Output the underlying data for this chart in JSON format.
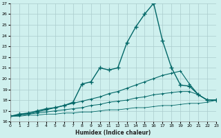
{
  "xlabel": "Humidex (Indice chaleur)",
  "bg_color": "#cff0ee",
  "grid_color": "#aacccc",
  "line_color": "#006666",
  "xlim": [
    0,
    23
  ],
  "ylim": [
    16,
    27
  ],
  "xticks": [
    0,
    1,
    2,
    3,
    4,
    5,
    6,
    7,
    8,
    9,
    10,
    11,
    12,
    13,
    14,
    15,
    16,
    17,
    18,
    19,
    20,
    21,
    22,
    23
  ],
  "yticks": [
    16,
    17,
    18,
    19,
    20,
    21,
    22,
    23,
    24,
    25,
    26,
    27
  ],
  "series": [
    {
      "y": [
        16.5,
        16.7,
        16.8,
        17.0,
        17.2,
        17.3,
        17.5,
        17.8,
        19.5,
        19.7,
        21.0,
        20.8,
        21.0,
        23.3,
        24.8,
        26.0,
        27.0,
        23.5,
        21.0,
        19.4,
        19.3,
        18.5,
        18.0,
        18.0
      ],
      "lw": 1.0,
      "ms": 4
    },
    {
      "y": [
        16.5,
        16.6,
        16.7,
        16.9,
        17.1,
        17.3,
        17.5,
        17.7,
        17.9,
        18.1,
        18.3,
        18.6,
        18.8,
        19.1,
        19.4,
        19.7,
        20.0,
        20.3,
        20.5,
        20.7,
        19.5,
        18.5,
        18.0,
        18.0
      ],
      "lw": 0.8,
      "ms": 3
    },
    {
      "y": [
        16.5,
        16.6,
        16.7,
        16.8,
        16.9,
        17.0,
        17.1,
        17.2,
        17.3,
        17.5,
        17.6,
        17.8,
        17.9,
        18.0,
        18.2,
        18.3,
        18.5,
        18.6,
        18.7,
        18.8,
        18.8,
        18.5,
        18.0,
        18.0
      ],
      "lw": 0.7,
      "ms": 2.5
    },
    {
      "y": [
        16.5,
        16.5,
        16.6,
        16.6,
        16.7,
        16.7,
        16.8,
        16.8,
        16.9,
        16.9,
        17.0,
        17.1,
        17.1,
        17.2,
        17.3,
        17.3,
        17.4,
        17.5,
        17.5,
        17.6,
        17.7,
        17.7,
        17.8,
        18.0
      ],
      "lw": 0.6,
      "ms": 2
    }
  ]
}
